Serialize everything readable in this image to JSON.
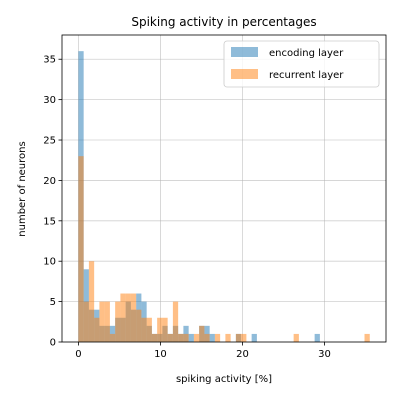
{
  "chart_data": {
    "type": "bar",
    "title": "Spiking activity in percentages",
    "xlabel": "spiking activity [%]",
    "ylabel": "number of neurons",
    "xlim": [
      -2,
      37.5
    ],
    "ylim": [
      0,
      38
    ],
    "xticks": [
      0,
      10,
      20,
      30
    ],
    "yticks": [
      0,
      5,
      10,
      15,
      20,
      25,
      30,
      35
    ],
    "bin_width": 0.64,
    "grid": true,
    "legend_position": "top-right",
    "series": [
      {
        "name": "encoding layer",
        "color": "#1f77b4",
        "opacity": 0.5,
        "bins": [
          {
            "x": 0.32,
            "count": 36
          },
          {
            "x": 0.96,
            "count": 9
          },
          {
            "x": 1.6,
            "count": 4
          },
          {
            "x": 2.24,
            "count": 4
          },
          {
            "x": 2.88,
            "count": 2
          },
          {
            "x": 3.52,
            "count": 2
          },
          {
            "x": 4.16,
            "count": 2
          },
          {
            "x": 4.8,
            "count": 3
          },
          {
            "x": 5.44,
            "count": 3
          },
          {
            "x": 6.08,
            "count": 5
          },
          {
            "x": 6.72,
            "count": 4
          },
          {
            "x": 7.36,
            "count": 6
          },
          {
            "x": 8.0,
            "count": 5
          },
          {
            "x": 8.64,
            "count": 2
          },
          {
            "x": 9.28,
            "count": 1
          },
          {
            "x": 9.92,
            "count": 1
          },
          {
            "x": 10.56,
            "count": 2
          },
          {
            "x": 11.2,
            "count": 1
          },
          {
            "x": 11.84,
            "count": 2
          },
          {
            "x": 12.48,
            "count": 1
          },
          {
            "x": 13.12,
            "count": 2
          },
          {
            "x": 13.76,
            "count": 1
          },
          {
            "x": 15.04,
            "count": 2
          },
          {
            "x": 15.68,
            "count": 2
          },
          {
            "x": 16.32,
            "count": 1
          },
          {
            "x": 19.52,
            "count": 1
          },
          {
            "x": 21.44,
            "count": 1
          },
          {
            "x": 29.12,
            "count": 1
          }
        ]
      },
      {
        "name": "recurrent layer",
        "color": "#ff7f0e",
        "opacity": 0.5,
        "bins": [
          {
            "x": 0.32,
            "count": 23
          },
          {
            "x": 0.96,
            "count": 5
          },
          {
            "x": 1.6,
            "count": 10
          },
          {
            "x": 2.24,
            "count": 3
          },
          {
            "x": 2.88,
            "count": 5
          },
          {
            "x": 3.52,
            "count": 5
          },
          {
            "x": 4.16,
            "count": 1
          },
          {
            "x": 4.8,
            "count": 5
          },
          {
            "x": 5.44,
            "count": 6
          },
          {
            "x": 6.08,
            "count": 6
          },
          {
            "x": 6.72,
            "count": 6
          },
          {
            "x": 7.36,
            "count": 4
          },
          {
            "x": 8.0,
            "count": 3
          },
          {
            "x": 8.64,
            "count": 3
          },
          {
            "x": 9.28,
            "count": 1
          },
          {
            "x": 9.92,
            "count": 3
          },
          {
            "x": 10.56,
            "count": 3
          },
          {
            "x": 11.2,
            "count": 1
          },
          {
            "x": 11.84,
            "count": 5
          },
          {
            "x": 12.48,
            "count": 1
          },
          {
            "x": 13.12,
            "count": 1
          },
          {
            "x": 14.4,
            "count": 1
          },
          {
            "x": 15.04,
            "count": 2
          },
          {
            "x": 15.68,
            "count": 1
          },
          {
            "x": 16.96,
            "count": 1
          },
          {
            "x": 18.24,
            "count": 1
          },
          {
            "x": 19.52,
            "count": 1
          },
          {
            "x": 20.16,
            "count": 1
          },
          {
            "x": 26.56,
            "count": 1
          },
          {
            "x": 35.2,
            "count": 1
          }
        ]
      }
    ]
  }
}
